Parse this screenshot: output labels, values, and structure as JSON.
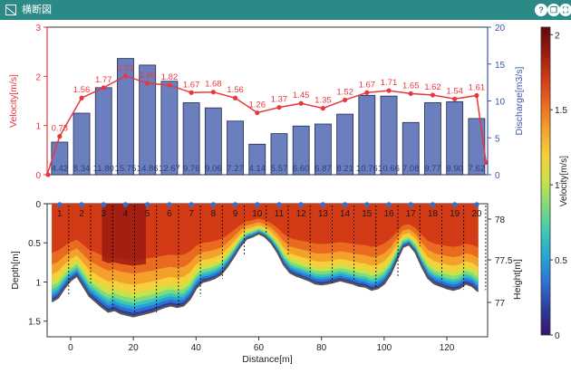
{
  "window": {
    "title": "横断図",
    "buttons": [
      {
        "name": "help-button",
        "glyph": "?"
      },
      {
        "name": "copy-button",
        "glyph": "❐"
      },
      {
        "name": "expand-button",
        "glyph": "⛶"
      }
    ],
    "accent": "#2b8a86"
  },
  "chart_data": [
    {
      "type": "bar+line",
      "x": [
        1,
        2,
        3,
        4,
        5,
        6,
        7,
        8,
        9,
        10,
        11,
        12,
        13,
        14,
        15,
        16,
        17,
        18,
        19,
        20
      ],
      "velocity_series": {
        "color": "#e8383d",
        "points_x": [
          -7.5,
          -3.5,
          3.5,
          10.5,
          17.5,
          24.5,
          31.5,
          38.5,
          45.5,
          52.5,
          59.5,
          66.5,
          73.5,
          80.5,
          87.5,
          94.5,
          101.5,
          108.5,
          115.5,
          122.5,
          129.5,
          132.5
        ],
        "points_y": [
          0,
          0.78,
          1.56,
          1.77,
          2.01,
          1.86,
          1.82,
          1.67,
          1.68,
          1.56,
          1.26,
          1.37,
          1.45,
          1.35,
          1.52,
          1.67,
          1.71,
          1.65,
          1.62,
          1.54,
          1.61,
          0.25
        ],
        "labels": [
          "0.78",
          "1.56",
          "1.77",
          "2.01",
          "1.86",
          "1.82",
          "1.67",
          "1.68",
          "1.56",
          "1.26",
          "1.37",
          "1.45",
          "1.35",
          "1.52",
          "1.67",
          "1.71",
          "1.65",
          "1.62",
          "1.54",
          "1.61"
        ]
      },
      "discharge_series": {
        "color": "#6b7fbf",
        "edge": "#1f2a4a",
        "values": [
          4.42,
          8.34,
          11.8,
          15.75,
          14.86,
          12.67,
          9.76,
          9.06,
          7.27,
          4.14,
          5.57,
          6.6,
          6.87,
          8.21,
          10.76,
          10.66,
          7.08,
          9.77,
          9.9,
          7.62
        ],
        "labels": [
          "4.42",
          "8.34",
          "11.80",
          "15.75",
          "14.86",
          "12.67",
          "9.76",
          "9.06",
          "7.27",
          "4.14",
          "5.57",
          "6.60",
          "6.87",
          "8.21",
          "10.76",
          "10.66",
          "7.08",
          "9.77",
          "9.90",
          "7.62"
        ]
      },
      "ylabel_left": "Velocity[m/s]",
      "ylabel_right": "Discharge[m3/s]",
      "ylim_left": [
        0,
        3
      ],
      "ylim_right": [
        0,
        20
      ],
      "yticks_left": [
        "0",
        "1",
        "2",
        "3"
      ],
      "yticks_right": [
        "0",
        "5",
        "10",
        "15",
        "20"
      ],
      "grid": false
    },
    {
      "type": "heatmap",
      "verticals": [
        "1",
        "2",
        "3",
        "4",
        "5",
        "6",
        "7",
        "8",
        "9",
        "10",
        "11",
        "12",
        "13",
        "14",
        "15",
        "16",
        "17",
        "18",
        "19",
        "20"
      ],
      "xlabel": "Distance[m]",
      "ylabel_left": "Depth[m]",
      "ylabel_right": "Height[m]",
      "xlim": [
        -7.5,
        133
      ],
      "ylim_depth": [
        0,
        1.7
      ],
      "xticks": [
        "0",
        "20",
        "40",
        "60",
        "80",
        "100",
        "120"
      ],
      "yticks_depth": [
        "0",
        "0.5",
        "1",
        "1.5"
      ],
      "yticks_height": [
        "78",
        "77.5",
        "77"
      ],
      "bed_depth_x": [
        -6,
        -4,
        -2,
        0,
        2,
        4,
        6,
        8,
        10,
        12,
        14,
        16,
        18,
        20,
        22,
        24,
        26,
        28,
        30,
        32,
        34,
        36,
        38,
        40,
        42,
        44,
        46,
        48,
        50,
        52,
        54,
        56,
        58,
        60,
        62,
        64,
        66,
        68,
        70,
        72,
        74,
        76,
        78,
        80,
        82,
        84,
        86,
        88,
        90,
        92,
        94,
        96,
        98,
        100,
        102,
        104,
        106,
        108,
        110,
        112,
        114,
        116,
        118,
        120,
        122,
        124,
        126,
        128,
        130
      ],
      "bed_depth_y": [
        1.25,
        1.2,
        1.08,
        0.98,
        0.92,
        1.05,
        1.18,
        1.25,
        1.32,
        1.38,
        1.36,
        1.4,
        1.42,
        1.44,
        1.42,
        1.4,
        1.38,
        1.35,
        1.32,
        1.3,
        1.32,
        1.3,
        1.22,
        1.08,
        1.0,
        0.98,
        0.95,
        0.9,
        0.8,
        0.68,
        0.55,
        0.45,
        0.42,
        0.38,
        0.42,
        0.5,
        0.62,
        0.78,
        0.88,
        0.92,
        0.95,
        0.98,
        1.02,
        1.03,
        1.02,
        1.0,
        0.98,
        1.0,
        1.02,
        1.05,
        1.06,
        1.1,
        1.08,
        1.02,
        0.9,
        0.72,
        0.55,
        0.52,
        0.62,
        0.8,
        0.95,
        1.02,
        1.05,
        1.08,
        1.1,
        1.08,
        1.02,
        1.05,
        1.12
      ],
      "colorbar": {
        "label": "Velocity[m/s]",
        "range": [
          0,
          2.05
        ],
        "ticks": [
          "0",
          "0.5",
          "1",
          "1.5",
          "2"
        ],
        "colormap": [
          "#3b0f70",
          "#2c3c9c",
          "#2f6fd0",
          "#27a2d8",
          "#3cc7b4",
          "#7fd97e",
          "#c8e24b",
          "#f5d03a",
          "#f4a12c",
          "#ea6a1f",
          "#d23b16",
          "#9c1a10",
          "#5e0b0b"
        ]
      },
      "marker_color": "#2f6fd0"
    }
  ]
}
